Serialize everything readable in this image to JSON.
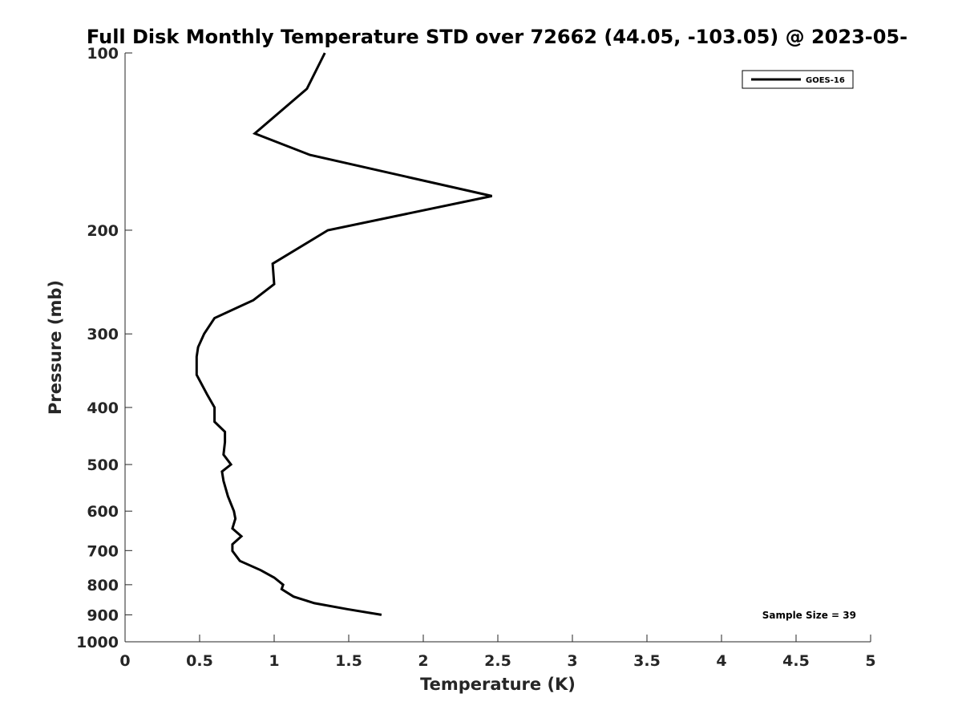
{
  "chart_data": {
    "type": "line",
    "title": "Full Disk Monthly Temperature STD over 72662 (44.05, -103.05) @ 2023-05-",
    "xlabel": "Temperature (K)",
    "ylabel": "Pressure (mb)",
    "xlim": [
      0,
      5
    ],
    "ylim": [
      100,
      1000
    ],
    "y_scale": "log",
    "y_reversed": true,
    "x_ticks": [
      0,
      0.5,
      1,
      1.5,
      2,
      2.5,
      3,
      3.5,
      4,
      4.5,
      5
    ],
    "x_tick_labels": [
      "0",
      "0.5",
      "1",
      "1.5",
      "2",
      "2.5",
      "3",
      "3.5",
      "4",
      "4.5",
      "5"
    ],
    "y_ticks": [
      100,
      200,
      300,
      400,
      500,
      600,
      700,
      800,
      900,
      1000
    ],
    "y_tick_labels": [
      "100",
      "200",
      "300",
      "400",
      "500",
      "600",
      "700",
      "800",
      "900",
      "1000"
    ],
    "grid": false,
    "legend_position": "top-right",
    "series": [
      {
        "name": "GOES-16",
        "color": "#000000",
        "x": [
          1.34,
          1.22,
          0.87,
          1.24,
          2.46,
          1.36,
          0.99,
          1.0,
          0.86,
          0.6,
          0.53,
          0.49,
          0.48,
          0.48,
          0.55,
          0.6,
          0.6,
          0.67,
          0.67,
          0.66,
          0.71,
          0.65,
          0.66,
          0.69,
          0.73,
          0.74,
          0.72,
          0.78,
          0.72,
          0.72,
          0.77,
          0.91,
          1.0,
          1.06,
          1.05,
          1.13,
          1.27,
          1.49,
          1.72
        ],
        "y": [
          100,
          115,
          137,
          149,
          175,
          200,
          228,
          247,
          263,
          282,
          300,
          316,
          328,
          352,
          380,
          400,
          423,
          440,
          458,
          481,
          500,
          514,
          533,
          566,
          600,
          618,
          642,
          662,
          683,
          701,
          729,
          756,
          778,
          800,
          814,
          838,
          860,
          880,
          900
        ]
      }
    ],
    "annotations": [
      "Sample Size = 39"
    ]
  }
}
